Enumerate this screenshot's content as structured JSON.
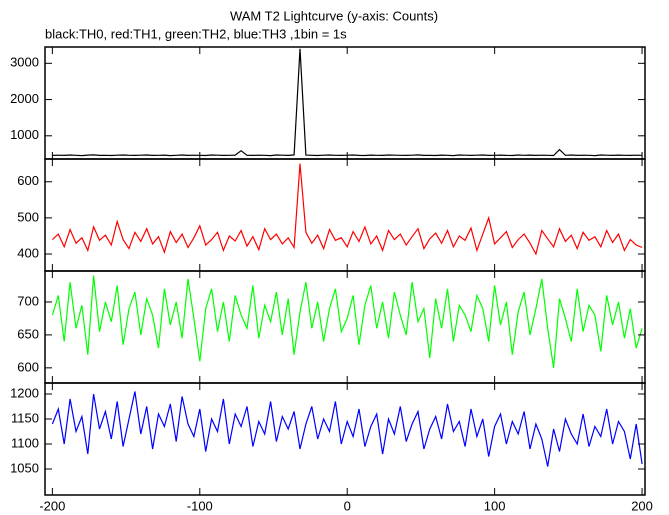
{
  "chart_data": {
    "type": "line",
    "title": "WAM T2 Lightcurve (y-axis: Counts)",
    "subtitle": "black:TH0, red:TH1, green:TH2, blue:TH3 ,1bin = 1s",
    "xlim": [
      -205,
      202
    ],
    "xticks": [
      -200,
      -100,
      0,
      100,
      200
    ],
    "x": [
      -200,
      -196,
      -192,
      -188,
      -184,
      -180,
      -176,
      -172,
      -168,
      -164,
      -160,
      -156,
      -152,
      -148,
      -144,
      -140,
      -136,
      -132,
      -128,
      -124,
      -120,
      -116,
      -112,
      -108,
      -104,
      -100,
      -96,
      -92,
      -88,
      -84,
      -80,
      -76,
      -72,
      -68,
      -64,
      -60,
      -56,
      -52,
      -48,
      -44,
      -40,
      -36,
      -32,
      -28,
      -24,
      -20,
      -16,
      -12,
      -8,
      -4,
      0,
      4,
      8,
      12,
      16,
      20,
      24,
      28,
      32,
      36,
      40,
      44,
      48,
      52,
      56,
      60,
      64,
      68,
      72,
      76,
      80,
      84,
      88,
      92,
      96,
      100,
      104,
      108,
      112,
      116,
      120,
      124,
      128,
      132,
      136,
      140,
      144,
      148,
      152,
      156,
      160,
      164,
      168,
      172,
      176,
      180,
      184,
      188,
      192,
      196,
      200
    ],
    "panels": [
      {
        "color": "#000000",
        "ylim": [
          360,
          3450
        ],
        "yticks": [
          1000,
          2000,
          3000
        ],
        "values": [
          460,
          465,
          458,
          470,
          462,
          455,
          468,
          472,
          460,
          463,
          457,
          466,
          470,
          461,
          459,
          464,
          471,
          458,
          462,
          467,
          455,
          463,
          469,
          460,
          466,
          461,
          457,
          470,
          465,
          459,
          462,
          468,
          590,
          463,
          458,
          466,
          461,
          455,
          470,
          464,
          459,
          472,
          3400,
          468,
          461,
          457,
          466,
          470,
          462,
          458,
          465,
          471,
          460,
          456,
          467,
          463,
          459,
          470,
          464,
          461,
          458,
          466,
          472,
          460,
          463,
          457,
          468,
          461,
          455,
          469,
          464,
          460,
          466,
          471,
          458,
          463,
          467,
          460,
          456,
          470,
          462,
          468,
          459,
          465,
          461,
          457,
          620,
          463,
          470,
          458,
          466,
          461,
          455,
          469,
          464,
          460,
          467,
          462,
          458,
          465,
          463
        ]
      },
      {
        "color": "#ff0000",
        "ylim": [
          353,
          663
        ],
        "yticks": [
          400,
          500,
          600
        ],
        "values": [
          440,
          455,
          420,
          468,
          430,
          445,
          410,
          475,
          438,
          452,
          425,
          490,
          440,
          415,
          460,
          435,
          470,
          428,
          448,
          405,
          462,
          432,
          455,
          418,
          445,
          478,
          425,
          440,
          460,
          410,
          450,
          436,
          465,
          422,
          448,
          412,
          470,
          440,
          455,
          428,
          445,
          418,
          650,
          460,
          430,
          452,
          415,
          468,
          438,
          445,
          420,
          462,
          435,
          475,
          428,
          450,
          410,
          465,
          440,
          455,
          425,
          448,
          470,
          415,
          442,
          458,
          430,
          465,
          420,
          450,
          438,
          472,
          410,
          455,
          500,
          428,
          445,
          462,
          418,
          440,
          455,
          430,
          400,
          465,
          442,
          420,
          470,
          435,
          452,
          415,
          460,
          438,
          448,
          420,
          465,
          432,
          455,
          410,
          440,
          425,
          418
        ]
      },
      {
        "color": "#00ff00",
        "ylim": [
          577,
          747
        ],
        "yticks": [
          600,
          650,
          700
        ],
        "values": [
          680,
          710,
          640,
          730,
          660,
          695,
          620,
          740,
          655,
          700,
          670,
          725,
          635,
          690,
          715,
          650,
          705,
          680,
          630,
          720,
          665,
          700,
          645,
          735,
          675,
          610,
          690,
          720,
          655,
          700,
          640,
          710,
          680,
          660,
          725,
          645,
          695,
          670,
          715,
          650,
          705,
          620,
          685,
          730,
          660,
          700,
          640,
          690,
          720,
          655,
          675,
          710,
          635,
          695,
          725,
          660,
          700,
          645,
          715,
          680,
          650,
          730,
          670,
          690,
          615,
          705,
          660,
          720,
          640,
          695,
          680,
          655,
          710,
          690,
          640,
          725,
          665,
          700,
          620,
          685,
          715,
          650,
          690,
          735,
          660,
          600,
          705,
          675,
          640,
          720,
          655,
          695,
          680,
          625,
          710,
          665,
          700,
          645,
          690,
          630,
          660
        ]
      },
      {
        "color": "#0000ff",
        "ylim": [
          998,
          1222
        ],
        "yticks": [
          1050,
          1100,
          1150,
          1200
        ],
        "values": [
          1140,
          1170,
          1100,
          1190,
          1125,
          1155,
          1080,
          1200,
          1130,
          1165,
          1110,
          1185,
          1095,
          1150,
          1205,
          1120,
          1175,
          1090,
          1160,
          1135,
          1180,
          1105,
          1195,
          1140,
          1115,
          1170,
          1085,
          1150,
          1125,
          1190,
          1100,
          1160,
          1135,
          1175,
          1095,
          1145,
          1120,
          1185,
          1105,
          1155,
          1130,
          1165,
          1090,
          1140,
          1175,
          1110,
          1150,
          1125,
          1185,
          1100,
          1145,
          1115,
          1170,
          1095,
          1135,
          1160,
          1080,
          1150,
          1120,
          1175,
          1105,
          1140,
          1165,
          1090,
          1130,
          1155,
          1110,
          1180,
          1125,
          1145,
          1095,
          1170,
          1115,
          1150,
          1075,
          1135,
          1160,
          1100,
          1145,
          1120,
          1165,
          1090,
          1140,
          1110,
          1055,
          1130,
          1085,
          1150,
          1120,
          1100,
          1160,
          1095,
          1135,
          1115,
          1170,
          1100,
          1145,
          1125,
          1070,
          1140,
          1060
        ]
      }
    ]
  }
}
